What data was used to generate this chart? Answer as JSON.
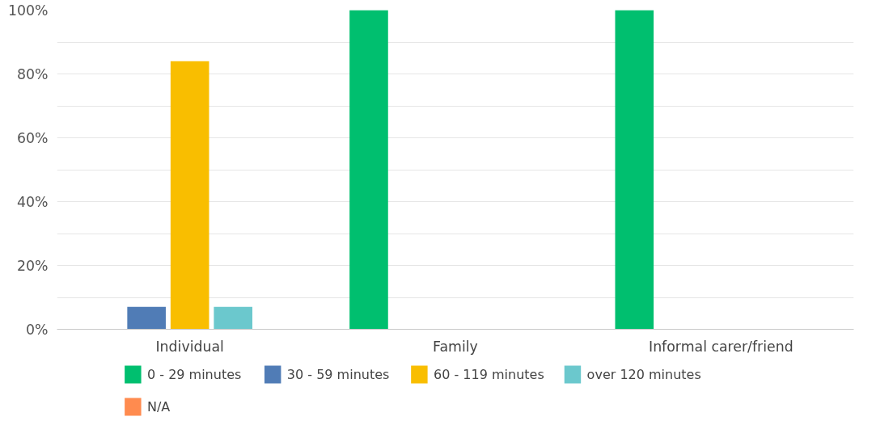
{
  "chart_data": {
    "type": "bar",
    "categories": [
      "Individual",
      "Family",
      "Informal carer/friend"
    ],
    "series": [
      {
        "name": "0 - 29 minutes",
        "color": "#00bf6f",
        "values": [
          0,
          100,
          100
        ]
      },
      {
        "name": "30 - 59 minutes",
        "color": "#507cb6",
        "values": [
          7,
          0,
          0
        ]
      },
      {
        "name": "60 - 119 minutes",
        "color": "#f9be00",
        "values": [
          84,
          0,
          0
        ]
      },
      {
        "name": "over 120 minutes",
        "color": "#6bc8cd",
        "values": [
          7,
          0,
          0
        ]
      },
      {
        "name": "N/A",
        "color": "#ff8b4f",
        "values": [
          0,
          0,
          0
        ]
      }
    ],
    "ylim": [
      0,
      100
    ],
    "yticks": [
      {
        "value": 0,
        "label": "0%"
      },
      {
        "value": 10,
        "label": null
      },
      {
        "value": 20,
        "label": "20%"
      },
      {
        "value": 30,
        "label": null
      },
      {
        "value": 40,
        "label": "40%"
      },
      {
        "value": 50,
        "label": null
      },
      {
        "value": 60,
        "label": "60%"
      },
      {
        "value": 70,
        "label": null
      },
      {
        "value": 80,
        "label": "80%"
      },
      {
        "value": 90,
        "label": null
      },
      {
        "value": 100,
        "label": "100%"
      }
    ],
    "grid": "y",
    "legend": "bottom"
  }
}
